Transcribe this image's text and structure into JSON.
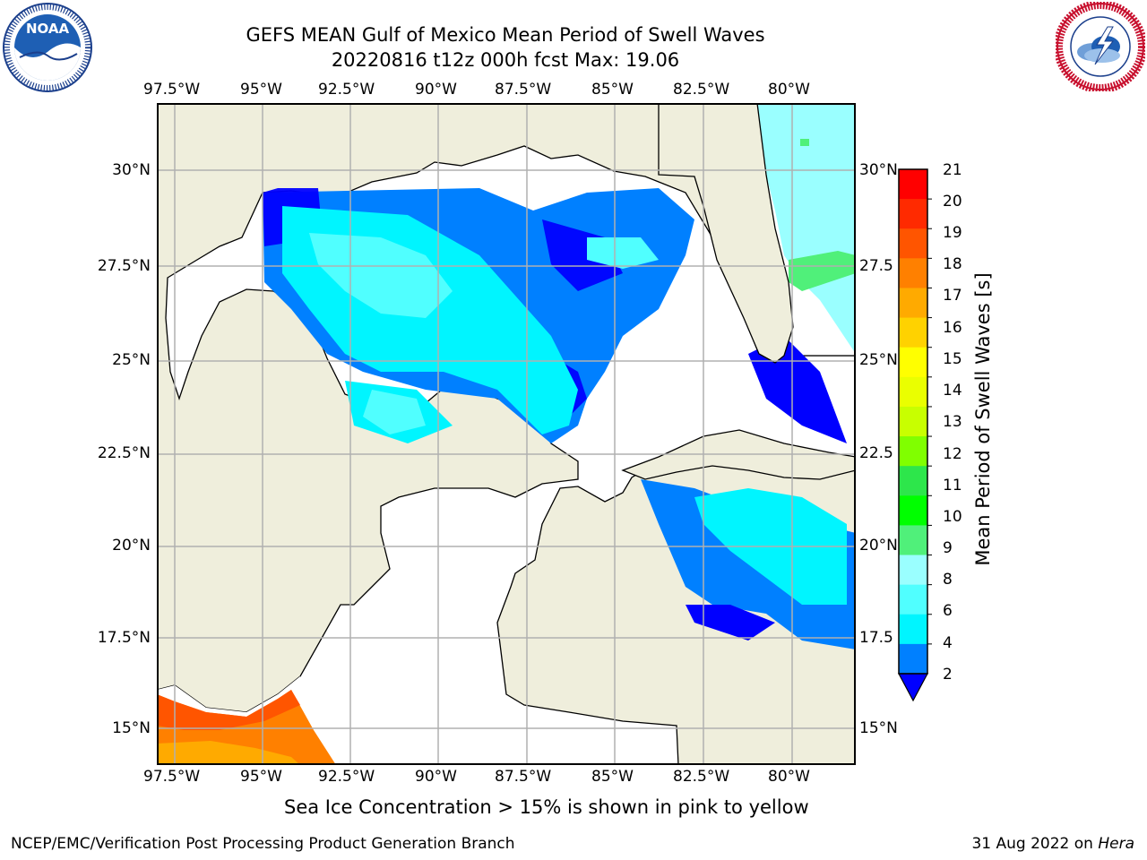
{
  "header": {
    "title_line1": "GEFS MEAN Gulf of Mexico Mean Period of Swell Waves",
    "title_line2": "20220816 t12z 000h fcst   Max: 19.06"
  },
  "logos": {
    "noaa": {
      "text": "NOAA",
      "ring_text": "NATIONAL OCEANIC AND ATMOSPHERIC ADMINISTRATION · U.S. DEPARTMENT OF COMMERCE"
    },
    "nws": {
      "ring_text": "NATIONAL WEATHER SERVICE"
    }
  },
  "map": {
    "lon_labels": [
      "97.5°W",
      "95°W",
      "92.5°W",
      "90°W",
      "87.5°W",
      "85°W",
      "82.5°W",
      "80°W"
    ],
    "lat_labels_left": [
      "30°N",
      "27.5°N",
      "25°N",
      "22.5°N",
      "20°N",
      "17.5°N",
      "15°N"
    ],
    "lat_labels_right": [
      "30°N",
      "27.5",
      "25°N",
      "22.5",
      "20°N",
      "17.5",
      "15°N"
    ],
    "colors": {
      "land": "#efeedc",
      "ocean": "#ffffff",
      "grid": "#b0b0b0",
      "coast": "#000000"
    }
  },
  "colorbar": {
    "label": "Mean Period of Swell Waves [s]",
    "ticks": [
      "21",
      "20",
      "19",
      "18",
      "17",
      "16",
      "15",
      "14",
      "13",
      "12",
      "11",
      "10",
      "9",
      "8",
      "6",
      "4",
      "2"
    ],
    "colors_top_to_bottom": [
      "#ff0000",
      "#ff2a00",
      "#ff5500",
      "#ff8000",
      "#ffaa00",
      "#ffd200",
      "#ffff00",
      "#eaff00",
      "#c8ff00",
      "#80ff00",
      "#2de64b",
      "#00ff00",
      "#50f07a",
      "#9affff",
      "#50ffff",
      "#00f5ff",
      "#0080ff"
    ],
    "under_color": "#0000ff"
  },
  "caption": "Sea Ice Concentration > 15% is shown in pink to yellow",
  "footer": {
    "left": "NCEP/EMC/Verification Post Processing Product Generation Branch",
    "right_prefix": "31 Aug 2022 on ",
    "right_host": "Hera"
  }
}
